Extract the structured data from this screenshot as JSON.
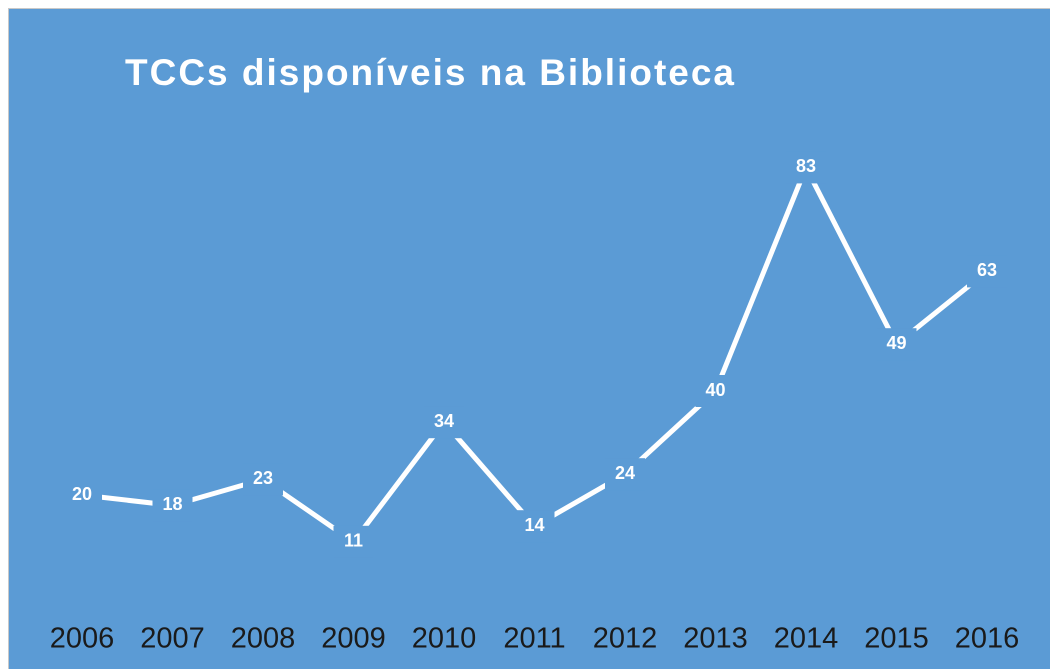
{
  "chart_data": {
    "type": "line",
    "title": "TCCs disponíveis na Biblioteca",
    "categories": [
      "2006",
      "2007",
      "2008",
      "2009",
      "2010",
      "2011",
      "2012",
      "2013",
      "2014",
      "2015",
      "2016"
    ],
    "series": [
      {
        "name": "TCCs",
        "color": "#ffffff",
        "values": [
          20,
          18,
          23,
          11,
          34,
          14,
          24,
          40,
          83,
          49,
          63
        ]
      }
    ],
    "background": "#5b9bd5"
  }
}
